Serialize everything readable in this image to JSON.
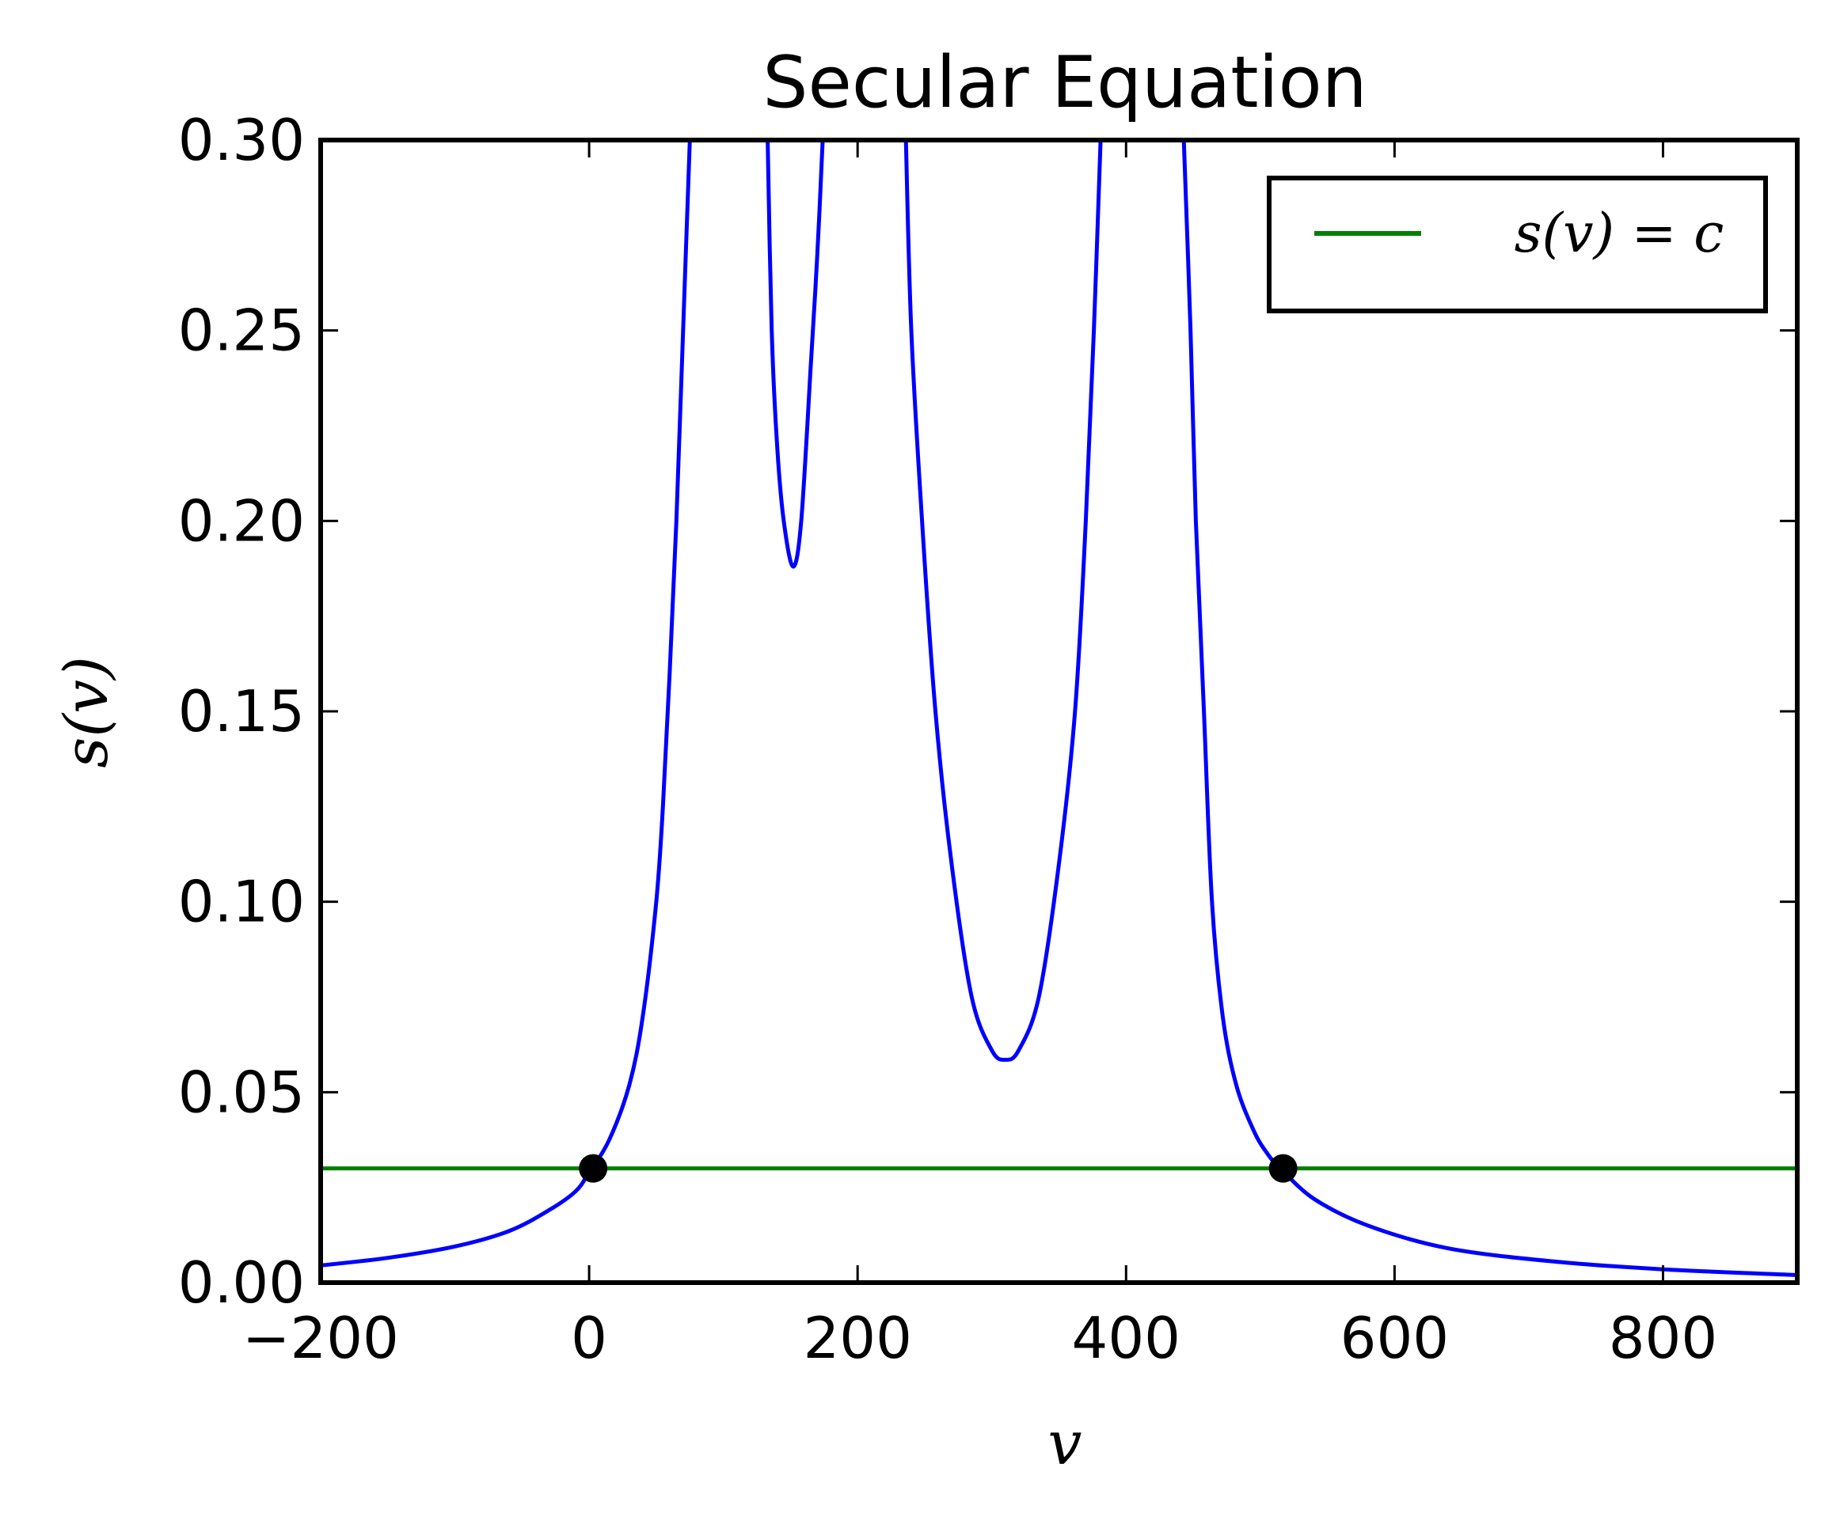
{
  "chart_data": {
    "type": "line",
    "title": "Secular Equation",
    "xlabel": "v",
    "ylabel": "s(v)",
    "xlim": [
      -200,
      900
    ],
    "ylim": [
      0.0,
      0.3
    ],
    "xticks": [
      -200,
      0,
      200,
      400,
      600,
      800
    ],
    "xtick_labels": [
      "−200",
      "0",
      "200",
      "400",
      "600",
      "800"
    ],
    "yticks": [
      0.0,
      0.05,
      0.1,
      0.15,
      0.2,
      0.25,
      0.3
    ],
    "ytick_labels": [
      "0.00",
      "0.05",
      "0.10",
      "0.15",
      "0.20",
      "0.25",
      "0.30"
    ],
    "grid": false,
    "legend_position": "top-right",
    "series": [
      {
        "name": "",
        "color": "#0000ff",
        "points": [
          [
            -200,
            0.0045
          ],
          [
            -150,
            0.0065
          ],
          [
            -100,
            0.0095
          ],
          [
            -60,
            0.0135
          ],
          [
            -30,
            0.019
          ],
          [
            -10,
            0.024
          ],
          [
            0,
            0.029
          ],
          [
            15,
            0.0375
          ],
          [
            30,
            0.052
          ],
          [
            40,
            0.07
          ],
          [
            50,
            0.1
          ],
          [
            55,
            0.125
          ],
          [
            60,
            0.16
          ],
          [
            65,
            0.2
          ],
          [
            70,
            0.25
          ],
          [
            75,
            0.3
          ]
        ]
      },
      {
        "name": "",
        "color": "#0000ff",
        "points": [
          [
            133,
            0.3
          ],
          [
            136,
            0.25
          ],
          [
            140,
            0.22
          ],
          [
            145,
            0.2
          ],
          [
            152,
            0.188
          ],
          [
            158,
            0.2
          ],
          [
            165,
            0.24
          ],
          [
            170,
            0.27
          ],
          [
            174,
            0.3
          ]
        ]
      },
      {
        "name": "",
        "color": "#0000ff",
        "points": [
          [
            236,
            0.3
          ],
          [
            240,
            0.25
          ],
          [
            248,
            0.2
          ],
          [
            258,
            0.15
          ],
          [
            270,
            0.11
          ],
          [
            285,
            0.075
          ],
          [
            300,
            0.061
          ],
          [
            310,
            0.0585
          ],
          [
            320,
            0.061
          ],
          [
            335,
            0.075
          ],
          [
            350,
            0.11
          ],
          [
            362,
            0.15
          ],
          [
            370,
            0.2
          ],
          [
            376,
            0.25
          ],
          [
            381,
            0.3
          ]
        ]
      },
      {
        "name": "",
        "color": "#0000ff",
        "points": [
          [
            443,
            0.3
          ],
          [
            448,
            0.25
          ],
          [
            452,
            0.2
          ],
          [
            458,
            0.15
          ],
          [
            464,
            0.1
          ],
          [
            472,
            0.07
          ],
          [
            482,
            0.052
          ],
          [
            495,
            0.04
          ],
          [
            505,
            0.034
          ],
          [
            515,
            0.03
          ],
          [
            540,
            0.022
          ],
          [
            580,
            0.015
          ],
          [
            640,
            0.009
          ],
          [
            720,
            0.0055
          ],
          [
            800,
            0.0035
          ],
          [
            900,
            0.002
          ]
        ]
      },
      {
        "name": "s(v) = c",
        "color": "#008000",
        "points": [
          [
            -200,
            0.03
          ],
          [
            900,
            0.03
          ]
        ]
      }
    ],
    "markers": [
      {
        "x": 3,
        "y": 0.03,
        "color": "#000000"
      },
      {
        "x": 517,
        "y": 0.03,
        "color": "#000000"
      }
    ],
    "legend": {
      "entries": [
        {
          "label": "s(v) = c",
          "color": "#008000"
        }
      ]
    }
  }
}
